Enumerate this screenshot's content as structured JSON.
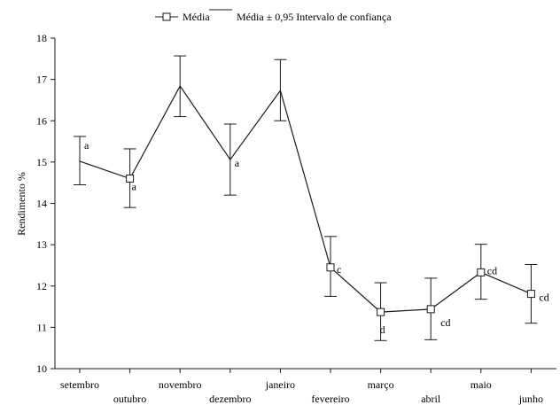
{
  "chart_data": {
    "type": "line",
    "title": "",
    "xlabel": "",
    "ylabel": "Rendimento %",
    "ylim": [
      10,
      18
    ],
    "yticks": [
      10,
      11,
      12,
      13,
      14,
      15,
      16,
      17,
      18
    ],
    "grid": false,
    "legend_position": "top",
    "legend": {
      "mean_label": "Média",
      "ci_label": "Média ± 0,95 Intervalo de confiança"
    },
    "categories": [
      "setembro",
      "outubro",
      "novembro",
      "dezembro",
      "janeiro",
      "fevereiro",
      "março",
      "abril",
      "maio",
      "junho"
    ],
    "series": [
      {
        "name": "Média",
        "values": [
          15.02,
          14.6,
          16.84,
          15.06,
          16.73,
          12.45,
          11.37,
          11.44,
          12.33,
          11.81
        ],
        "ci_lower": [
          14.45,
          13.9,
          16.1,
          14.2,
          16.0,
          11.75,
          10.68,
          10.7,
          11.68,
          11.1
        ],
        "ci_upper": [
          15.62,
          15.32,
          17.57,
          15.92,
          17.48,
          13.2,
          12.08,
          12.19,
          13.01,
          12.52
        ],
        "markers_shown": [
          false,
          true,
          false,
          false,
          false,
          true,
          true,
          true,
          true,
          true
        ],
        "annotations": [
          "a",
          "a",
          "",
          "a",
          "",
          "c",
          "d",
          "cd",
          "cd",
          "cd"
        ]
      }
    ]
  }
}
